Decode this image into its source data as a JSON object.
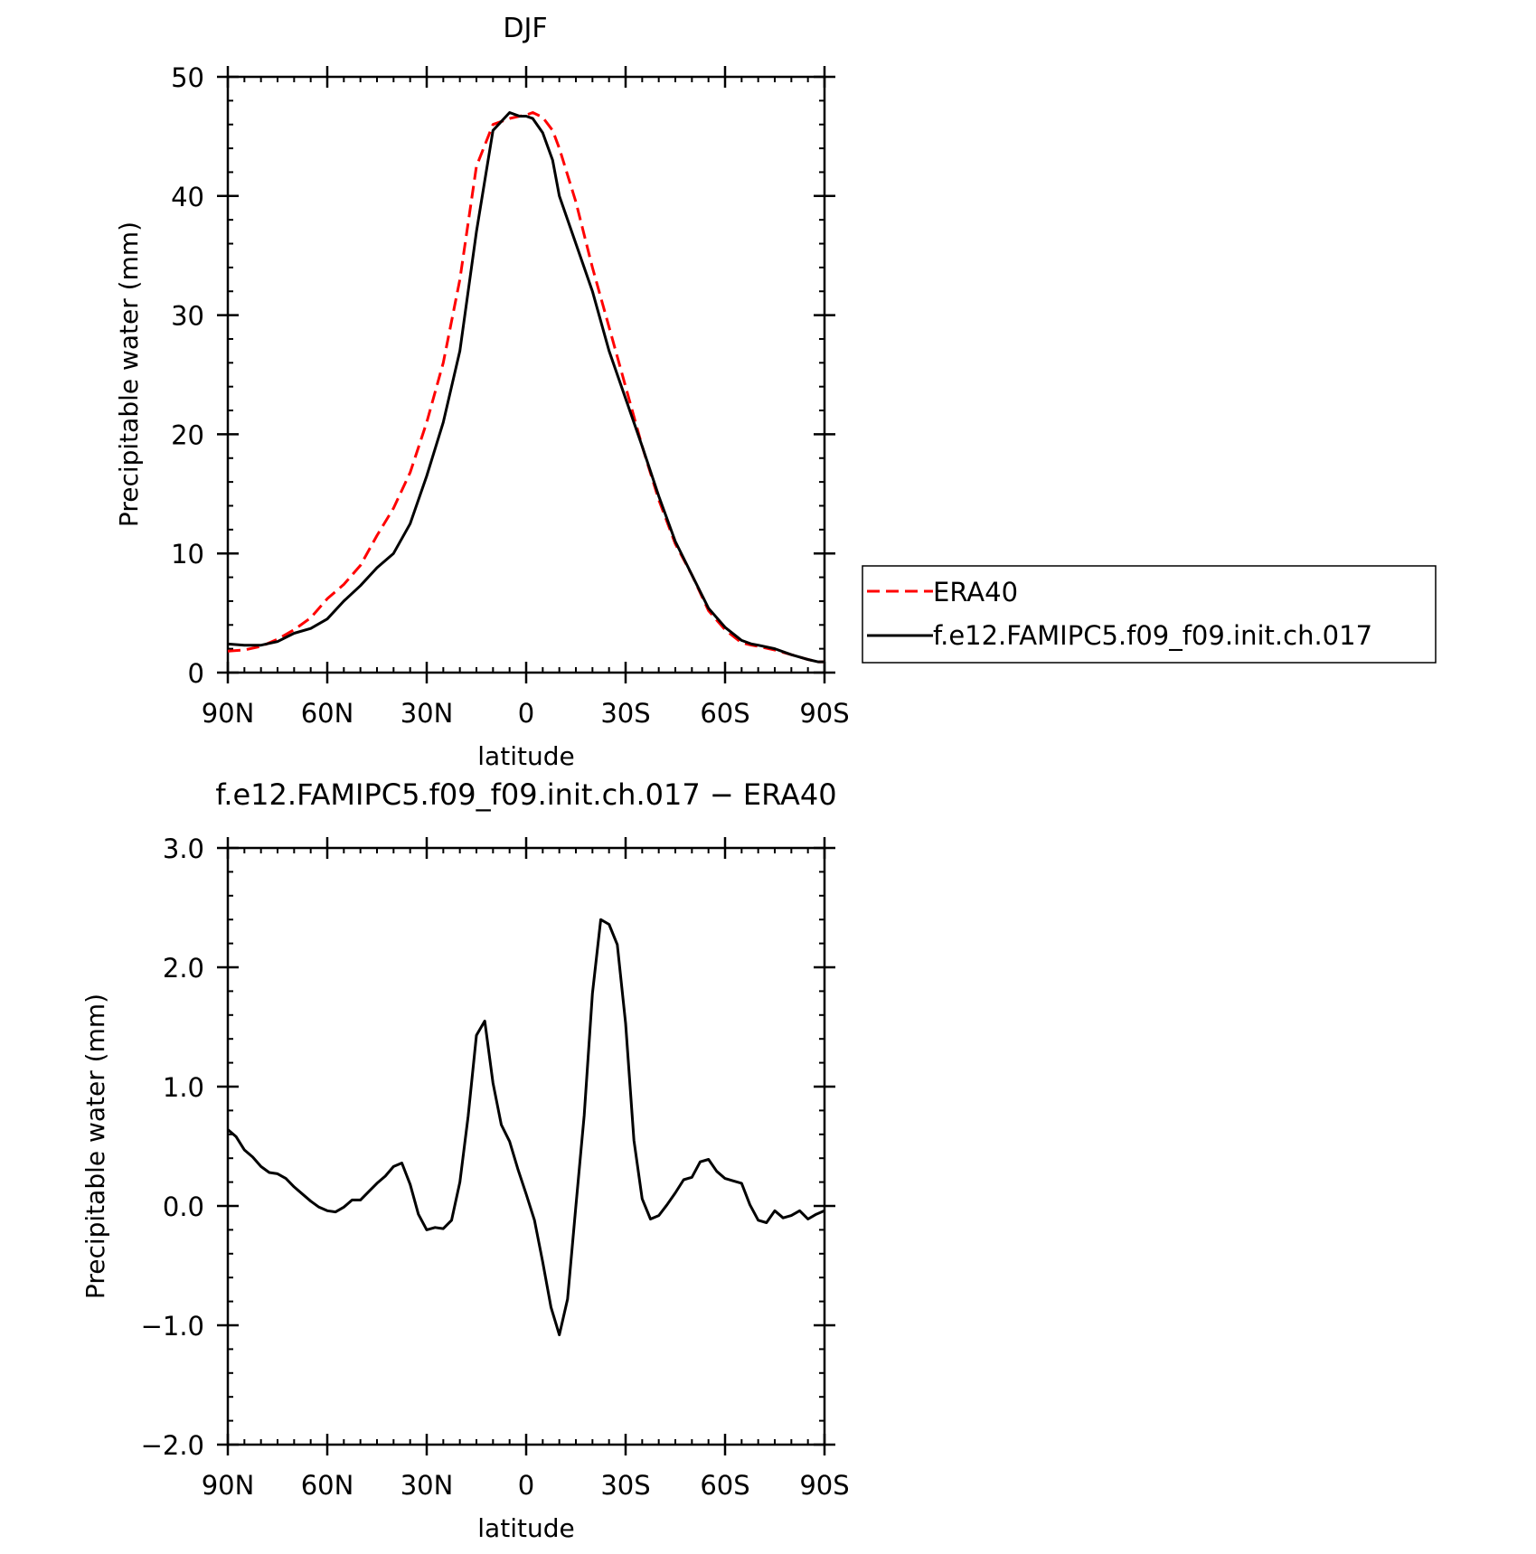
{
  "chart_data": [
    {
      "type": "line",
      "title": "DJF",
      "xlabel": "latitude",
      "ylabel": "Precipitable water (mm)",
      "xlim": [
        90,
        -90
      ],
      "ylim": [
        0,
        50
      ],
      "xticks": [
        90,
        60,
        30,
        0,
        -30,
        -60,
        -90
      ],
      "xtick_labels": [
        "90N",
        "60N",
        "30N",
        "0",
        "30S",
        "60S",
        "90S"
      ],
      "yticks": [
        0,
        10,
        20,
        30,
        40,
        50
      ],
      "ytick_labels": [
        "0",
        "10",
        "20",
        "30",
        "40",
        "50"
      ],
      "grid": false,
      "legend_position": "right",
      "series": [
        {
          "name": "ERA40",
          "color": "#ff0000",
          "dash": "dashed",
          "x": [
            90,
            85,
            80,
            75,
            70,
            65,
            60,
            55,
            50,
            45,
            40,
            35,
            30,
            25,
            20,
            15,
            10,
            5,
            2,
            0,
            -2,
            -5,
            -8,
            -10,
            -15,
            -20,
            -25,
            -30,
            -35,
            -40,
            -45,
            -50,
            -55,
            -60,
            -65,
            -68,
            -70,
            -75,
            -80,
            -85,
            -88,
            -90
          ],
          "values": [
            1.8,
            1.9,
            2.2,
            2.8,
            3.6,
            4.6,
            6.2,
            7.4,
            9.0,
            11.5,
            13.8,
            16.8,
            21.0,
            26.0,
            33.0,
            42.5,
            46.0,
            46.5,
            46.7,
            46.8,
            47.0,
            46.6,
            45.5,
            44.0,
            39.5,
            34.0,
            29.0,
            24.0,
            19.0,
            14.5,
            10.8,
            8.2,
            5.2,
            3.6,
            2.5,
            2.3,
            2.2,
            1.9,
            1.5,
            1.1,
            0.9,
            0.9
          ]
        },
        {
          "name": "f.e12.FAMIPC5.f09_f09.init.ch.017",
          "color": "#000000",
          "dash": "solid",
          "x": [
            90,
            85,
            80,
            75,
            70,
            65,
            60,
            55,
            50,
            45,
            40,
            35,
            30,
            25,
            20,
            15,
            10,
            5,
            2,
            0,
            -2,
            -5,
            -8,
            -10,
            -15,
            -20,
            -25,
            -30,
            -35,
            -40,
            -45,
            -50,
            -55,
            -60,
            -65,
            -68,
            -70,
            -75,
            -80,
            -85,
            -88,
            -90
          ],
          "values": [
            2.4,
            2.3,
            2.3,
            2.6,
            3.3,
            3.7,
            4.5,
            6.0,
            7.3,
            8.8,
            10.0,
            12.5,
            16.5,
            21.0,
            27.0,
            37.0,
            45.5,
            47.0,
            46.7,
            46.7,
            46.5,
            45.3,
            43.0,
            40.0,
            36.0,
            32.0,
            27.0,
            23.0,
            19.0,
            14.8,
            11.0,
            8.2,
            5.4,
            3.8,
            2.7,
            2.4,
            2.3,
            2.0,
            1.5,
            1.1,
            0.9,
            0.9
          ]
        }
      ]
    },
    {
      "type": "line",
      "title": "f.e12.FAMIPC5.f09_f09.init.ch.017 − ERA40",
      "xlabel": "latitude",
      "ylabel": "Precipitable water (mm)",
      "xlim": [
        90,
        -90
      ],
      "ylim": [
        -2.0,
        3.0
      ],
      "xticks": [
        90,
        60,
        30,
        0,
        -30,
        -60,
        -90
      ],
      "xtick_labels": [
        "90N",
        "60N",
        "30N",
        "0",
        "30S",
        "60S",
        "90S"
      ],
      "yticks": [
        -2.0,
        -1.0,
        0.0,
        1.0,
        2.0,
        3.0
      ],
      "ytick_labels": [
        "−2.0",
        "−1.0",
        "0.0",
        "1.0",
        "2.0",
        "3.0"
      ],
      "grid": false,
      "series": [
        {
          "color": "#000000",
          "dash": "solid",
          "x": [
            90,
            87.5,
            85,
            82.5,
            80,
            77.5,
            75,
            72.5,
            70,
            67.5,
            65,
            62.5,
            60,
            57.5,
            55,
            52.5,
            50,
            47.5,
            45,
            42.5,
            40,
            37.5,
            35,
            32.5,
            30,
            27.5,
            25,
            22.5,
            20,
            17.5,
            15,
            12.5,
            10,
            7.5,
            5,
            2.5,
            0,
            -2.5,
            -5,
            -7.5,
            -10,
            -12.5,
            -15,
            -17.5,
            -20,
            -22.5,
            -25,
            -27.5,
            -30,
            -32.5,
            -35,
            -37.5,
            -40,
            -42.5,
            -45,
            -47.5,
            -50,
            -52.5,
            -55,
            -57.5,
            -60,
            -62.5,
            -65,
            -67.5,
            -70,
            -72.5,
            -75,
            -77.5,
            -80,
            -82.5,
            -85,
            -87.5,
            -90
          ],
          "values": [
            0.64,
            0.58,
            0.47,
            0.41,
            0.33,
            0.28,
            0.27,
            0.23,
            0.16,
            0.1,
            0.04,
            -0.01,
            -0.04,
            -0.05,
            -0.01,
            0.05,
            0.05,
            0.12,
            0.19,
            0.25,
            0.33,
            0.36,
            0.18,
            -0.07,
            -0.2,
            -0.18,
            -0.19,
            -0.12,
            0.2,
            0.75,
            1.43,
            1.55,
            1.03,
            0.68,
            0.54,
            0.31,
            0.1,
            -0.12,
            -0.47,
            -0.85,
            -1.08,
            -0.78,
            0.0,
            0.76,
            1.78,
            2.4,
            2.36,
            2.19,
            1.53,
            0.55,
            0.06,
            -0.11,
            -0.08,
            0.01,
            0.11,
            0.22,
            0.24,
            0.37,
            0.39,
            0.29,
            0.23,
            0.21,
            0.19,
            0.01,
            -0.12,
            -0.14,
            -0.04,
            -0.1,
            -0.08,
            -0.04,
            -0.11,
            -0.07,
            -0.04
          ]
        }
      ]
    }
  ]
}
